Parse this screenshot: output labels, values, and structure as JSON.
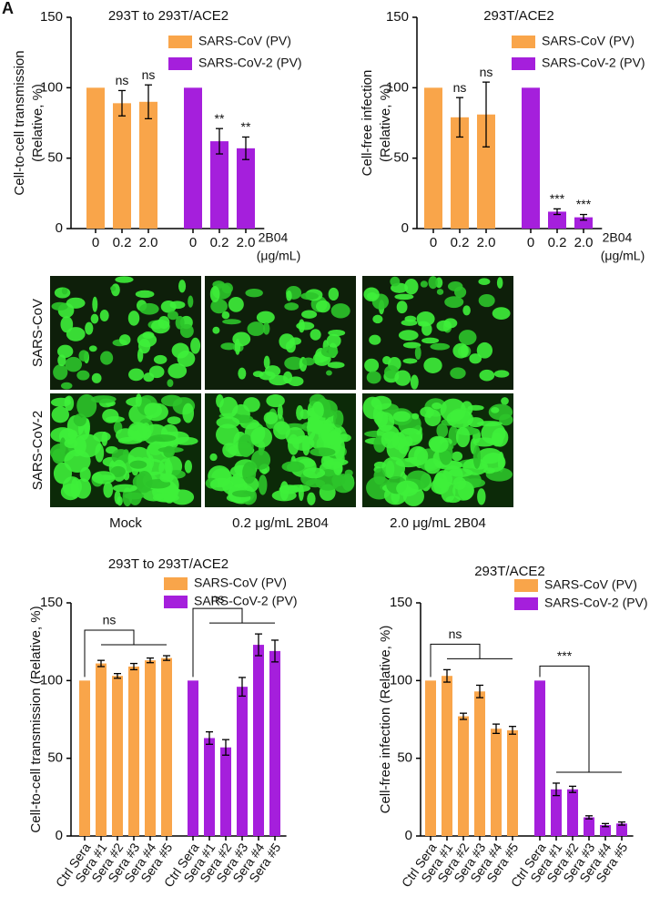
{
  "panel_label": "A",
  "chart_data": [
    {
      "type": "bar",
      "title": "293T to 293T/ACE2",
      "ylabel": [
        "Cell-to-cell transmission",
        "(Relative, %)"
      ],
      "xlabel": [
        "2B04",
        "(μg/mL)"
      ],
      "categories": [
        "0",
        "0.2",
        "2.0",
        "0",
        "0.2",
        "2.0"
      ],
      "series": [
        {
          "name": "SARS-CoV (PV)",
          "color": "#f9a54a",
          "values": [
            100,
            89,
            90,
            null,
            null,
            null
          ],
          "errors": [
            0,
            9,
            12,
            null,
            null,
            null
          ]
        },
        {
          "name": "SARS-CoV-2 (PV)",
          "color": "#a51fdc",
          "values": [
            null,
            null,
            null,
            100,
            62,
            57
          ],
          "errors": [
            null,
            null,
            null,
            0,
            9,
            8
          ]
        }
      ],
      "annotations": [
        null,
        "ns",
        "ns",
        null,
        "**",
        "**"
      ],
      "ylim": [
        0,
        150
      ],
      "yticks": [
        0,
        50,
        100,
        150
      ]
    },
    {
      "type": "bar",
      "title": "293T/ACE2",
      "ylabel": [
        "Cell-free infection",
        "(Relative, %)"
      ],
      "xlabel": [
        "2B04",
        "(μg/mL)"
      ],
      "categories": [
        "0",
        "0.2",
        "2.0",
        "0",
        "0.2",
        "2.0"
      ],
      "series": [
        {
          "name": "SARS-CoV (PV)",
          "color": "#f9a54a",
          "values": [
            100,
            79,
            81,
            null,
            null,
            null
          ],
          "errors": [
            0,
            14,
            23,
            null,
            null,
            null
          ]
        },
        {
          "name": "SARS-CoV-2 (PV)",
          "color": "#a51fdc",
          "values": [
            null,
            null,
            null,
            100,
            12,
            8
          ],
          "errors": [
            null,
            null,
            null,
            0,
            2,
            2
          ]
        }
      ],
      "annotations": [
        null,
        "ns",
        "ns",
        null,
        "***",
        "***"
      ],
      "ylim": [
        0,
        150
      ],
      "yticks": [
        0,
        50,
        100,
        150
      ]
    },
    {
      "type": "bar",
      "title": "293T to 293T/ACE2",
      "ylabel": [
        "Cell-to-cell transmission (Relative, %)"
      ],
      "categories": [
        "Ctrl Sera",
        "Sera #1",
        "Sera #2",
        "Sera #3",
        "Sera #4",
        "Sera #5",
        "Ctrl Sera",
        "Sera #1",
        "Sera #2",
        "Sera #3",
        "Sera #4",
        "Sera #5"
      ],
      "series": [
        {
          "name": "SARS-CoV (PV)",
          "color": "#f9a54a",
          "values": [
            100,
            111,
            103,
            109,
            113,
            114.5,
            null,
            null,
            null,
            null,
            null,
            null
          ],
          "errors": [
            0,
            2,
            1.5,
            2,
            1.5,
            1.5,
            null,
            null,
            null,
            null,
            null,
            null
          ]
        },
        {
          "name": "SARS-CoV-2 (PV)",
          "color": "#a51fdc",
          "values": [
            null,
            null,
            null,
            null,
            null,
            null,
            100,
            63,
            57,
            96,
            123,
            119
          ],
          "errors": [
            null,
            null,
            null,
            null,
            null,
            null,
            0,
            4,
            5,
            6,
            7,
            7
          ]
        }
      ],
      "group_annotations": [
        "ns",
        "ns"
      ],
      "ylim": [
        0,
        150
      ],
      "yticks": [
        0,
        50,
        100,
        150
      ]
    },
    {
      "type": "bar",
      "title": "293T/ACE2",
      "ylabel": [
        "Cell-free infection (Relative, %)"
      ],
      "categories": [
        "Ctrl Sera",
        "Sera #1",
        "Sera #2",
        "Sera #3",
        "Sera #4",
        "Sera #5",
        "Ctrl Sera",
        "Sera #1",
        "Sera #2",
        "Sera #3",
        "Sera #4",
        "Sera #5"
      ],
      "series": [
        {
          "name": "SARS-CoV (PV)",
          "color": "#f9a54a",
          "values": [
            100,
            103,
            77,
            93,
            69,
            68,
            null,
            null,
            null,
            null,
            null,
            null
          ],
          "errors": [
            0,
            4,
            2,
            4,
            3,
            2.5,
            null,
            null,
            null,
            null,
            null,
            null
          ]
        },
        {
          "name": "SARS-CoV-2 (PV)",
          "color": "#a51fdc",
          "values": [
            null,
            null,
            null,
            null,
            null,
            null,
            100,
            30,
            30,
            12,
            7,
            8
          ],
          "errors": [
            null,
            null,
            null,
            null,
            null,
            null,
            0,
            4,
            2,
            1,
            1,
            1
          ]
        }
      ],
      "group_annotations": [
        "ns",
        "***"
      ],
      "ylim": [
        0,
        150
      ],
      "yticks": [
        0,
        50,
        100,
        150
      ]
    }
  ],
  "image_grid": {
    "rows": [
      "SARS-CoV",
      "SARS-CoV-2"
    ],
    "columns": [
      "Mock",
      "0.2 μg/mL 2B04",
      "2.0 μg/mL 2B04"
    ]
  }
}
